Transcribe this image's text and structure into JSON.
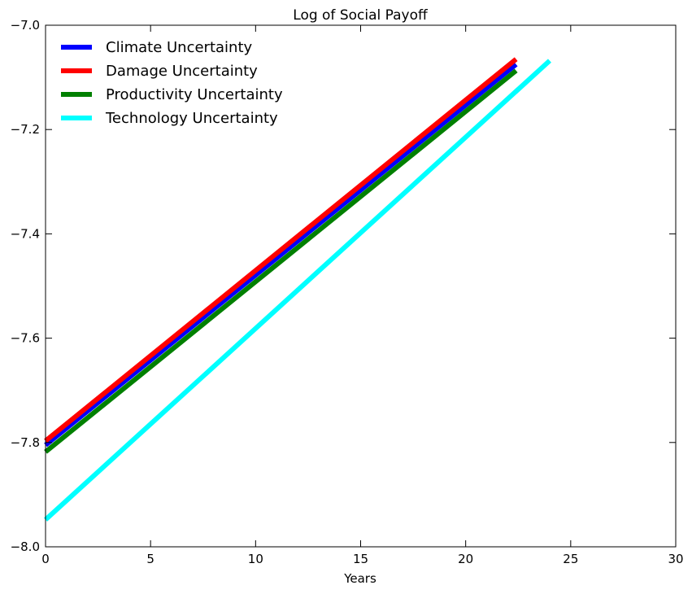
{
  "chart_data": {
    "type": "line",
    "title": "Log of Social Payoff",
    "xlabel": "Years",
    "ylabel": "",
    "xlim": [
      0,
      30
    ],
    "ylim": [
      -8.0,
      -7.0
    ],
    "xticks": [
      0,
      5,
      10,
      15,
      20,
      25,
      30
    ],
    "yticks": [
      -8.0,
      -7.8,
      -7.6,
      -7.4,
      -7.2,
      -7.0
    ],
    "xtick_labels": [
      "0",
      "5",
      "10",
      "15",
      "20",
      "25",
      "30"
    ],
    "ytick_labels": [
      "−8.0",
      "−7.8",
      "−7.6",
      "−7.4",
      "−7.2",
      "−7.0"
    ],
    "grid": false,
    "legend_position": "top-left",
    "series": [
      {
        "name": "Climate Uncertainty",
        "color": "#0000ff",
        "x": [
          0,
          22.4
        ],
        "y": [
          -7.805,
          -7.075
        ]
      },
      {
        "name": "Damage Uncertainty",
        "color": "#ff0000",
        "x": [
          0,
          22.4
        ],
        "y": [
          -7.797,
          -7.065
        ]
      },
      {
        "name": "Productivity Uncertainty",
        "color": "#008000",
        "x": [
          0,
          22.4
        ],
        "y": [
          -7.818,
          -7.087
        ]
      },
      {
        "name": "Technology Uncertainty",
        "color": "#00ffff",
        "x": [
          0,
          24.0
        ],
        "y": [
          -7.948,
          -7.068
        ]
      }
    ]
  }
}
